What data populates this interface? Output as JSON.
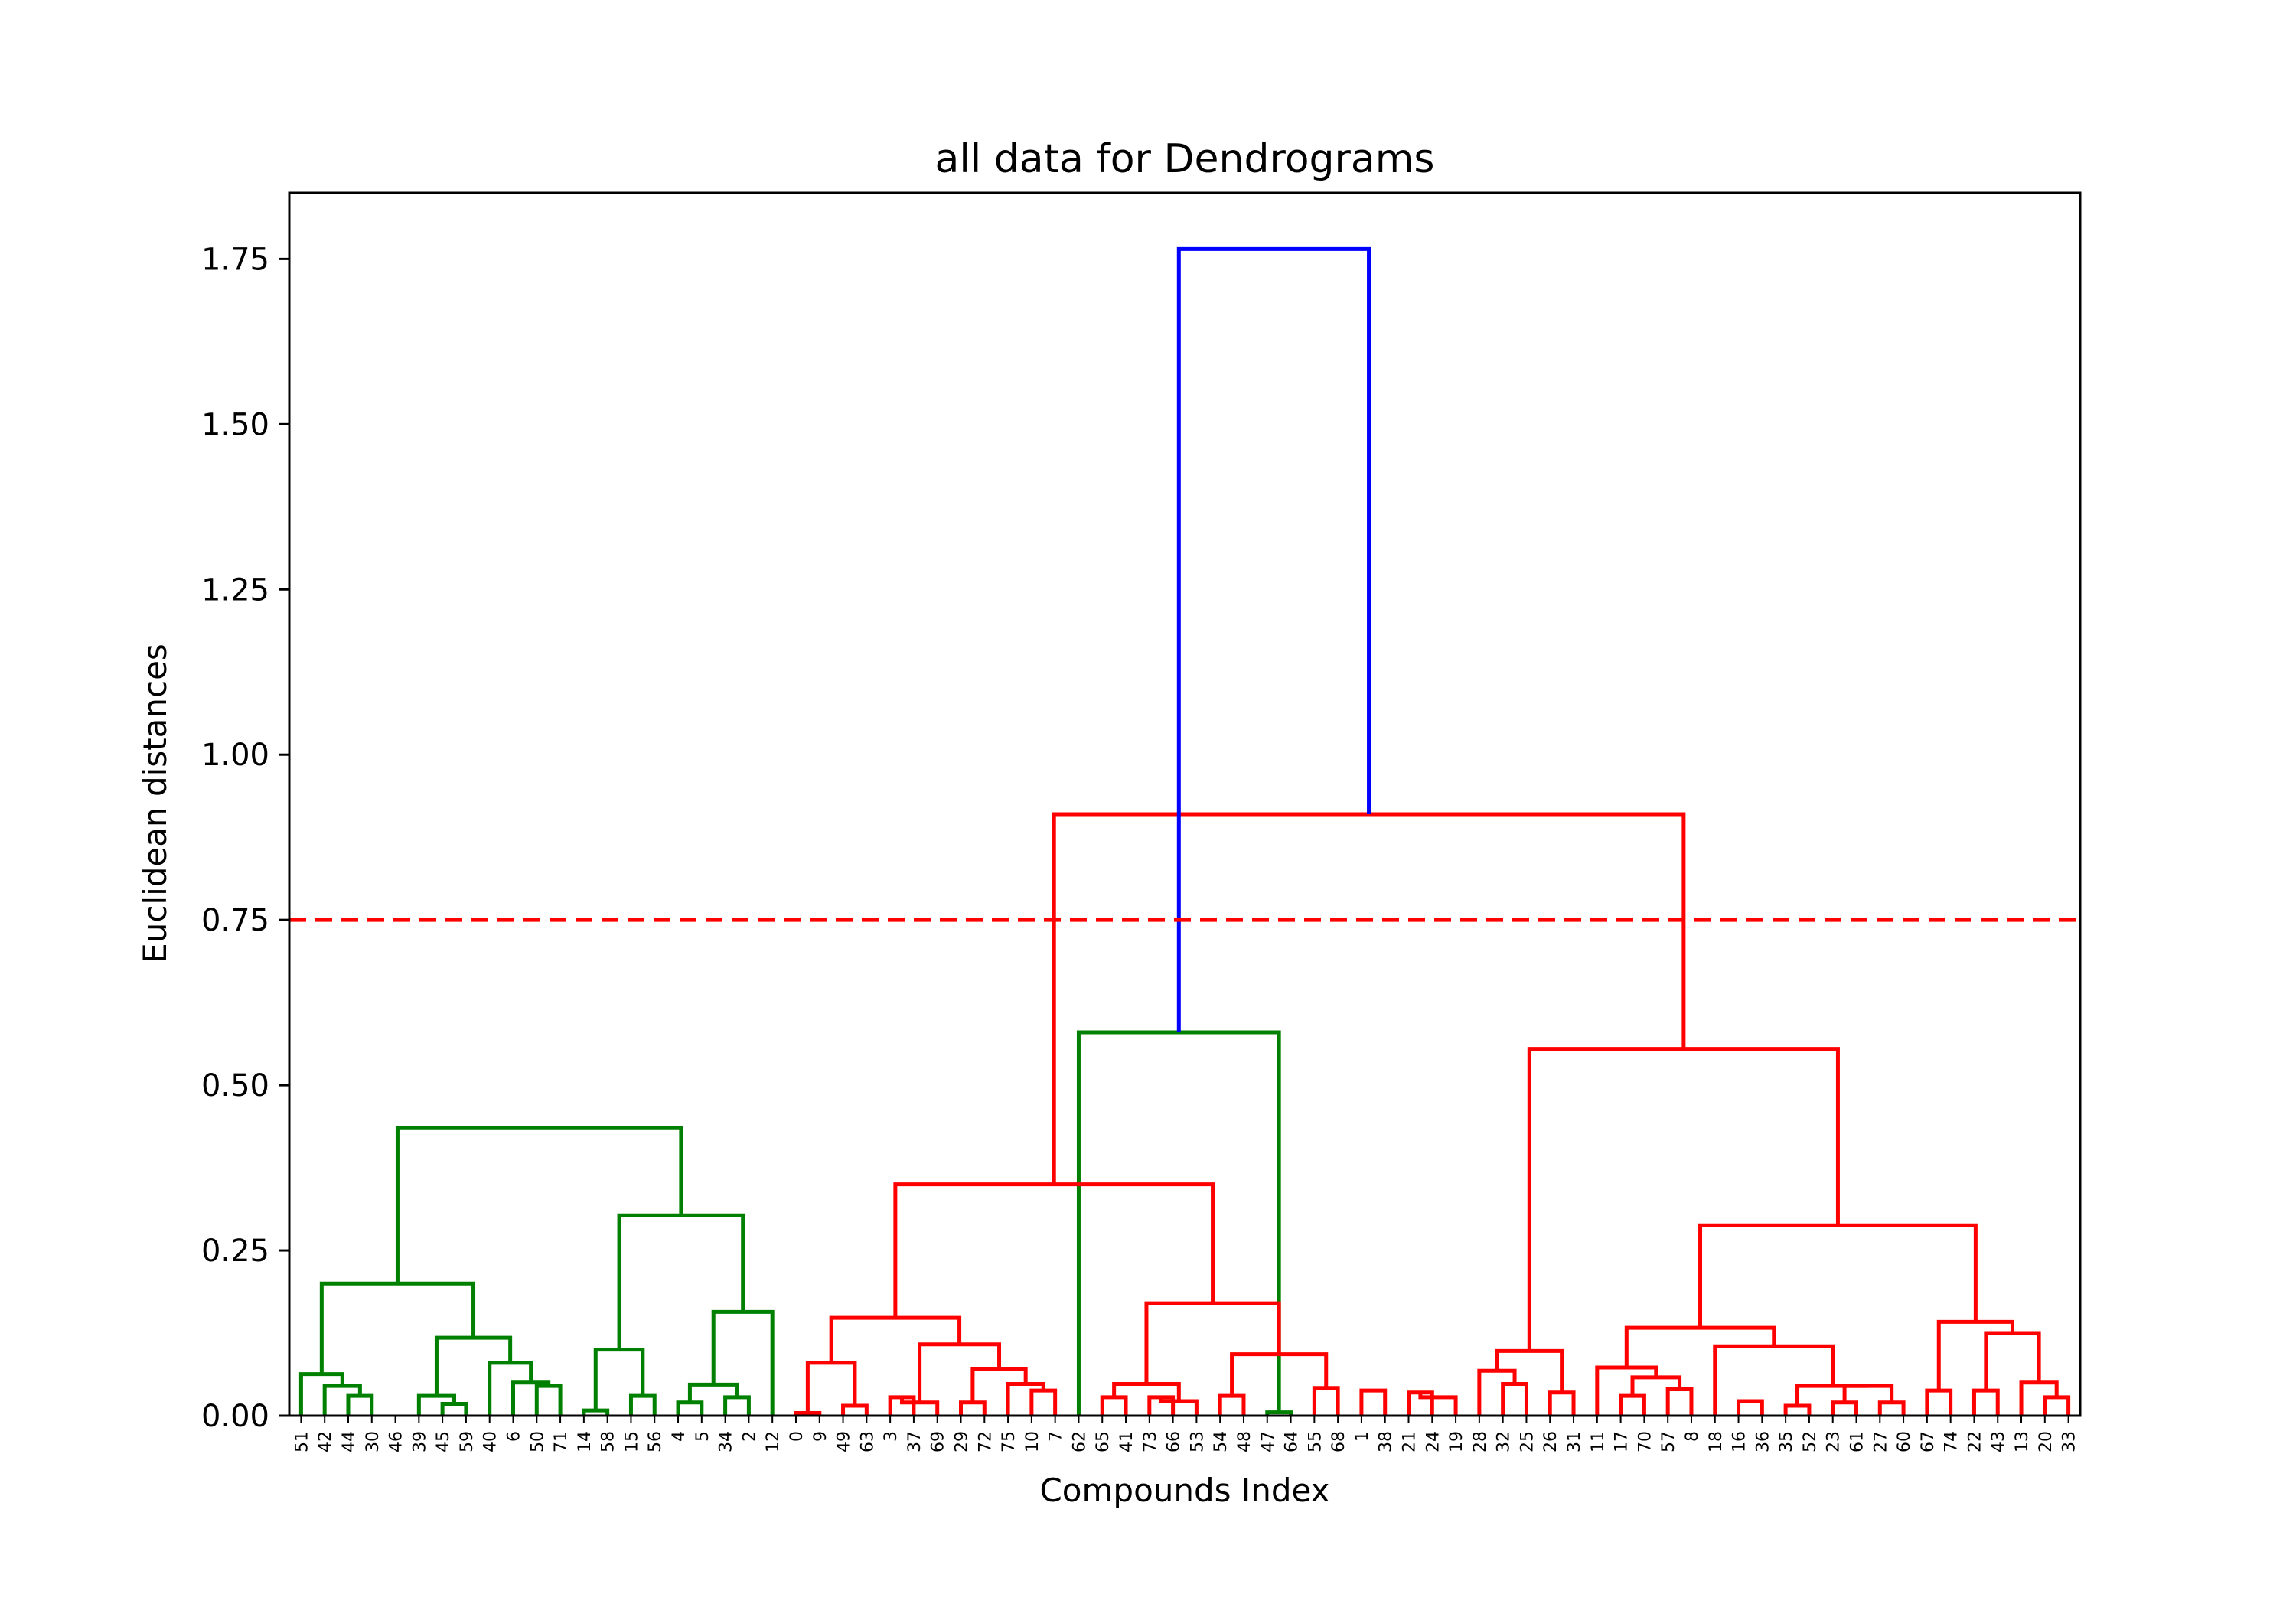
{
  "chart_data": {
    "type": "dendrogram",
    "title": "all data for Dendrograms",
    "xlabel": "Compounds Index",
    "ylabel": "Euclidean distances",
    "ylim": [
      0,
      1.85
    ],
    "yticks": [
      "0.00",
      "0.25",
      "0.50",
      "0.75",
      "1.00",
      "1.25",
      "1.50",
      "1.75"
    ],
    "leaves": [
      "51",
      "42",
      "44",
      "30",
      "46",
      "39",
      "45",
      "59",
      "40",
      "6",
      "50",
      "71",
      "14",
      "58",
      "15",
      "56",
      "4",
      "5",
      "34",
      "2",
      "12",
      "0",
      "9",
      "49",
      "63",
      "3",
      "37",
      "69",
      "29",
      "72",
      "75",
      "10",
      "7",
      "62",
      "65",
      "41",
      "73",
      "66",
      "53",
      "54",
      "48",
      "47",
      "64",
      "55",
      "68",
      "1",
      "38",
      "21",
      "24",
      "19",
      "28",
      "32",
      "25",
      "26",
      "31",
      "11",
      "17",
      "70",
      "57",
      "8",
      "18",
      "16",
      "36",
      "35",
      "52",
      "23",
      "61",
      "27",
      "60",
      "67",
      "74",
      "22",
      "43",
      "13",
      "20",
      "33"
    ],
    "threshold": {
      "value": 0.75,
      "color": "#ff0000",
      "style": "dashed"
    },
    "colors": {
      "cluster_1": "#008000",
      "cluster_2": "#ff0000",
      "root": "#0000ff"
    },
    "links": [
      {
        "a": 2,
        "b": 3,
        "h": 0.03,
        "color": "green"
      },
      {
        "a": 1,
        "b": "L0",
        "h": 0.045,
        "color": "green"
      },
      {
        "a": 0,
        "b": "L1",
        "h": 0.063,
        "color": "green"
      },
      {
        "a": 6,
        "b": 7,
        "h": 0.018,
        "color": "green"
      },
      {
        "a": 5,
        "b": "L3",
        "h": 0.03,
        "color": "green"
      },
      {
        "a": 10,
        "b": 11,
        "h": 0.045,
        "color": "green"
      },
      {
        "a": 9,
        "b": "L5",
        "h": 0.05,
        "color": "green"
      },
      {
        "a": 8,
        "b": "L6",
        "h": 0.08,
        "color": "green"
      },
      {
        "a": "L4",
        "b": "L7",
        "h": 0.118,
        "color": "green"
      },
      {
        "a": "L2",
        "b": "L8",
        "h": 0.2,
        "color": "green"
      },
      {
        "a": 12,
        "b": 13,
        "h": 0.008,
        "color": "green"
      },
      {
        "a": 14,
        "b": 15,
        "h": 0.03,
        "color": "green"
      },
      {
        "a": "L10",
        "b": "L11",
        "h": 0.1,
        "color": "green"
      },
      {
        "a": 16,
        "b": 17,
        "h": 0.02,
        "color": "green"
      },
      {
        "a": 18,
        "b": 19,
        "h": 0.028,
        "color": "green"
      },
      {
        "a": "L13",
        "b": "L14",
        "h": 0.047,
        "color": "green"
      },
      {
        "a": 20,
        "b": "L15",
        "h": 0.157,
        "color": "green"
      },
      {
        "a": "L12",
        "b": "L16",
        "h": 0.303,
        "color": "green"
      },
      {
        "a": "L9",
        "b": "L17",
        "h": 0.435,
        "color": "green"
      },
      {
        "a": 41,
        "b": 42,
        "h": 0.005,
        "color": "green"
      },
      {
        "a": 33,
        "b": "L19",
        "h": 0.58,
        "color": "green"
      },
      {
        "a": 21,
        "b": 22,
        "h": 0.004,
        "color": "red"
      },
      {
        "a": 23,
        "b": 24,
        "h": 0.015,
        "color": "red"
      },
      {
        "a": "L21",
        "b": "L22",
        "h": 0.08,
        "color": "red"
      },
      {
        "a": 25,
        "b": 26,
        "h": 0.028,
        "color": "red"
      },
      {
        "a": "L24",
        "b": 27,
        "h": 0.02,
        "color": "red"
      },
      {
        "a": 28,
        "b": 29,
        "h": 0.02,
        "color": "red"
      },
      {
        "a": 31,
        "b": 32,
        "h": 0.038,
        "color": "red"
      },
      {
        "a": 30,
        "b": "L27",
        "h": 0.048,
        "color": "red"
      },
      {
        "a": "L26",
        "b": "L28",
        "h": 0.07,
        "color": "red"
      },
      {
        "a": "L25",
        "b": "L29",
        "h": 0.108,
        "color": "red"
      },
      {
        "a": "L23",
        "b": "L30",
        "h": 0.148,
        "color": "red"
      },
      {
        "a": 34,
        "b": 35,
        "h": 0.028,
        "color": "red"
      },
      {
        "a": 36,
        "b": 37,
        "h": 0.028,
        "color": "red"
      },
      {
        "a": "L33",
        "b": 38,
        "h": 0.022,
        "color": "red"
      },
      {
        "a": "L32",
        "b": "L34",
        "h": 0.048,
        "color": "red"
      },
      {
        "a": 39,
        "b": 40,
        "h": 0.03,
        "color": "red"
      },
      {
        "a": 43,
        "b": 44,
        "h": 0.042,
        "color": "red"
      },
      {
        "a": "L36",
        "b": "L37",
        "h": 0.093,
        "color": "red"
      },
      {
        "a": "L35",
        "b": "L38",
        "h": 0.17,
        "color": "red"
      },
      {
        "a": "L31",
        "b": "L39",
        "h": 0.35,
        "color": "red"
      },
      {
        "a": 45,
        "b": 46,
        "h": 0.038,
        "color": "red"
      },
      {
        "a": 47,
        "b": 48,
        "h": 0.035,
        "color": "red"
      },
      {
        "a": "L42",
        "b": 49,
        "h": 0.028,
        "color": "red"
      },
      {
        "a": 51,
        "b": 52,
        "h": 0.048,
        "color": "red"
      },
      {
        "a": 50,
        "b": "L44",
        "h": 0.068,
        "color": "red"
      },
      {
        "a": 53,
        "b": 54,
        "h": 0.035,
        "color": "red"
      },
      {
        "a": "L45",
        "b": "L46",
        "h": 0.098,
        "color": "red"
      },
      {
        "a": 56,
        "b": 57,
        "h": 0.03,
        "color": "red"
      },
      {
        "a": 58,
        "b": 59,
        "h": 0.04,
        "color": "red"
      },
      {
        "a": "L48",
        "b": "L49",
        "h": 0.058,
        "color": "red"
      },
      {
        "a": 55,
        "b": "L50",
        "h": 0.073,
        "color": "red"
      },
      {
        "a": 61,
        "b": 62,
        "h": 0.022,
        "color": "red"
      },
      {
        "a": 63,
        "b": 64,
        "h": 0.015,
        "color": "red"
      },
      {
        "a": 65,
        "b": 66,
        "h": 0.02,
        "color": "red"
      },
      {
        "a": 67,
        "b": 68,
        "h": 0.02,
        "color": "red"
      },
      {
        "a": "L54",
        "b": "L55",
        "h": 0.045,
        "color": "red"
      },
      {
        "a": "L53",
        "b": "L56",
        "h": 0.045,
        "color": "red"
      },
      {
        "a": 60,
        "b": "L57",
        "h": 0.105,
        "color": "red"
      },
      {
        "a": "L51",
        "b": "L58",
        "h": 0.133,
        "color": "red"
      },
      {
        "a": 69,
        "b": 70,
        "h": 0.038,
        "color": "red"
      },
      {
        "a": 71,
        "b": 72,
        "h": 0.038,
        "color": "red"
      },
      {
        "a": 74,
        "b": 75,
        "h": 0.028,
        "color": "red"
      },
      {
        "a": 73,
        "b": "L62",
        "h": 0.05,
        "color": "red"
      },
      {
        "a": "L61",
        "b": "L63",
        "h": 0.125,
        "color": "red"
      },
      {
        "a": "L60",
        "b": "L64",
        "h": 0.142,
        "color": "red"
      },
      {
        "a": "L59",
        "b": "L65",
        "h": 0.288,
        "color": "red"
      },
      {
        "a": "L47",
        "b": "L66",
        "h": 0.555,
        "color": "red"
      },
      {
        "a": "L40",
        "b": "L67",
        "h": 0.91,
        "color": "red"
      },
      {
        "a": "L20",
        "b": "L68",
        "h": 1.765,
        "color": "blue"
      }
    ]
  }
}
